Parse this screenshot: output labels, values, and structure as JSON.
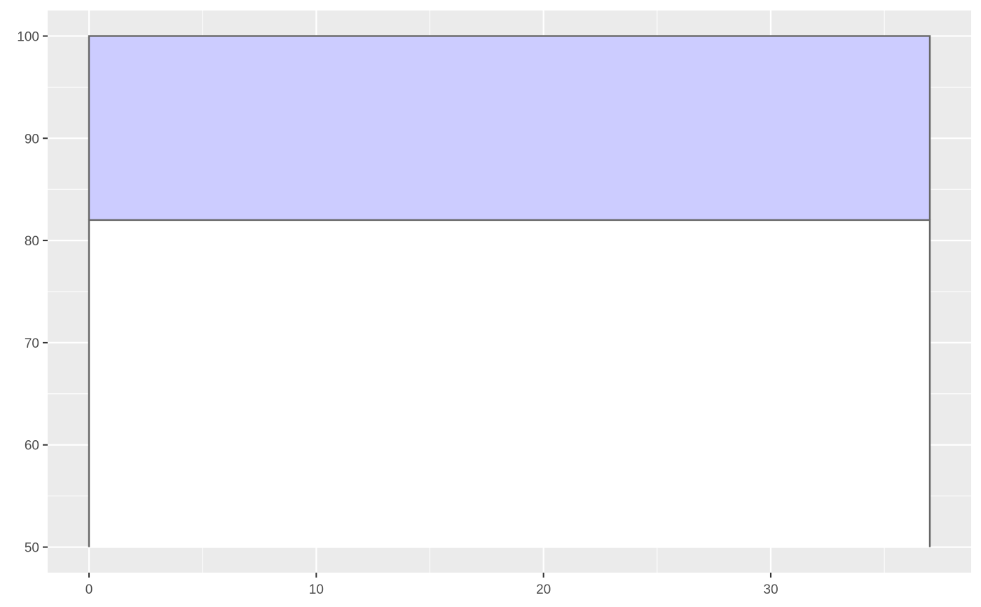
{
  "chart_data": {
    "type": "area",
    "title": "",
    "xlabel": "",
    "ylabel": "",
    "xlim": [
      -1.82,
      38.82
    ],
    "ylim": [
      47.5,
      102.5
    ],
    "x_ticks": [
      0,
      10,
      20,
      30
    ],
    "x_minor_ticks": [
      5,
      15,
      25,
      35
    ],
    "y_ticks": [
      50,
      60,
      70,
      80,
      90,
      100
    ],
    "y_minor_ticks": [
      55,
      65,
      75,
      85,
      95
    ],
    "grid": true,
    "legend": "none",
    "regions": [
      {
        "x": [
          0,
          37
        ],
        "y": [
          50,
          82
        ],
        "fill": "#ffffff",
        "stroke": "#666666"
      },
      {
        "x": [
          0,
          37
        ],
        "y": [
          82,
          100
        ],
        "fill": "#ccccff",
        "stroke": "#666666"
      }
    ],
    "colors": {
      "panel": "#ebebeb",
      "grid": "#ffffff",
      "axis": "#333333"
    }
  }
}
